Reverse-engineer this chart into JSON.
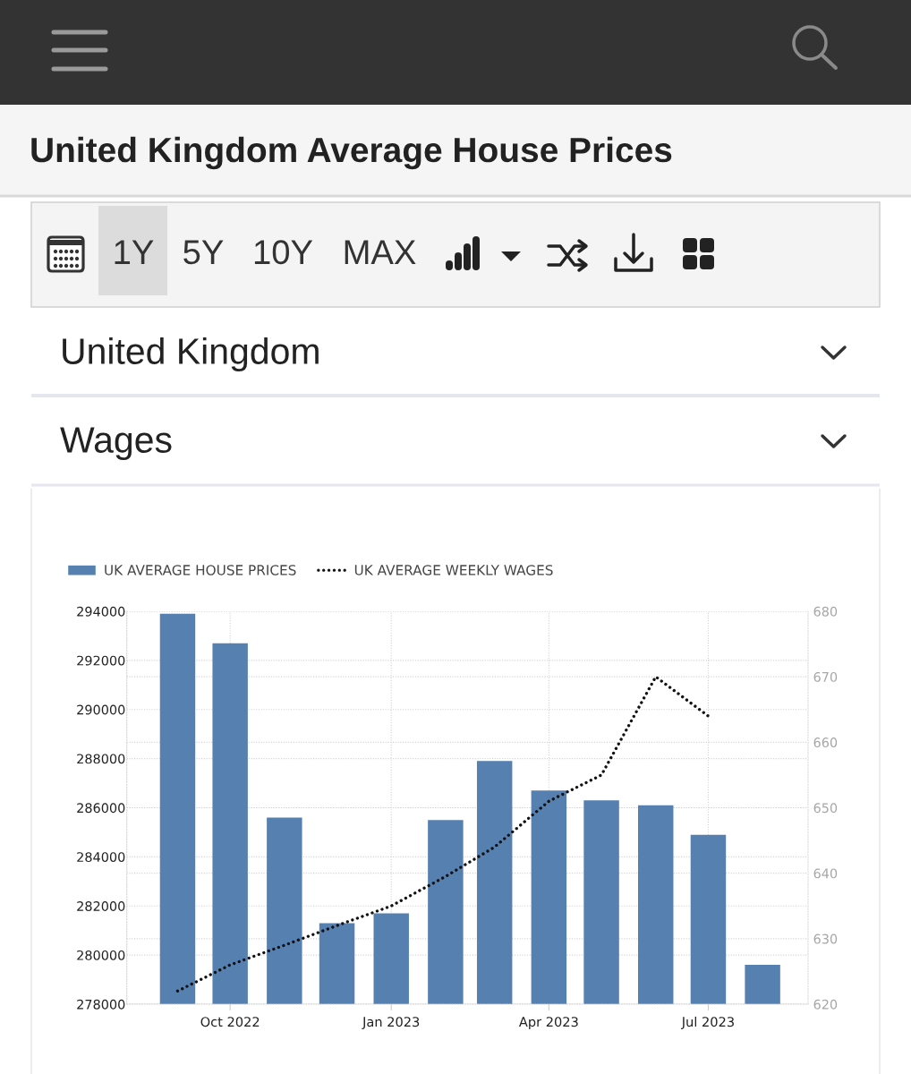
{
  "chart_data": {
    "type": "bar",
    "title": "United Kingdom Average House Prices",
    "annotations": [
      "1Y",
      "5Y",
      "10Y",
      "MAX",
      "United Kingdom",
      "Wages"
    ],
    "x": [
      "2022-09",
      "2022-10",
      "2022-11",
      "2022-12",
      "2023-01",
      "2023-02",
      "2023-03",
      "2023-04",
      "2023-05",
      "2023-06",
      "2023-07",
      "2023-08"
    ],
    "series": [
      {
        "name": "UK AVERAGE HOUSE PRICES",
        "color": "#5580b0",
        "values": [
          293900,
          292700,
          285600,
          281300,
          281700,
          285500,
          287900,
          286700,
          286300,
          286100,
          284900,
          279600
        ]
      },
      {
        "name": "UK AVERAGE WEEKLY WAGES",
        "type": "line",
        "axis": "y2",
        "color": "#111111",
        "x": [
          "2022-09",
          "2022-10",
          "2022-11",
          "2022-12",
          "2023-01",
          "2023-02",
          "2023-03",
          "2023-04",
          "2023-05",
          "2023-06",
          "2023-07"
        ],
        "values": [
          622,
          626,
          629,
          632,
          635,
          639.5,
          644,
          651,
          655,
          670,
          664
        ]
      }
    ],
    "xlim": [
      "2022-08-03",
      "2023-08-27"
    ],
    "xticks": [
      {
        "value": "2022-10",
        "label": "Oct 2022"
      },
      {
        "value": "2023-01",
        "label": "Jan 2023"
      },
      {
        "value": "2023-04",
        "label": "Apr 2023"
      },
      {
        "value": "2023-07",
        "label": "Jul 2023"
      }
    ],
    "ylim": [
      278000,
      294000
    ],
    "yticks": [
      278000,
      280000,
      282000,
      284000,
      286000,
      288000,
      290000,
      292000,
      294000
    ],
    "y2lim": [
      620,
      680
    ],
    "y2ticks": [
      620,
      630,
      640,
      650,
      660,
      670,
      680
    ],
    "grid": true,
    "legend": "top left",
    "line_style": "dotted"
  }
}
